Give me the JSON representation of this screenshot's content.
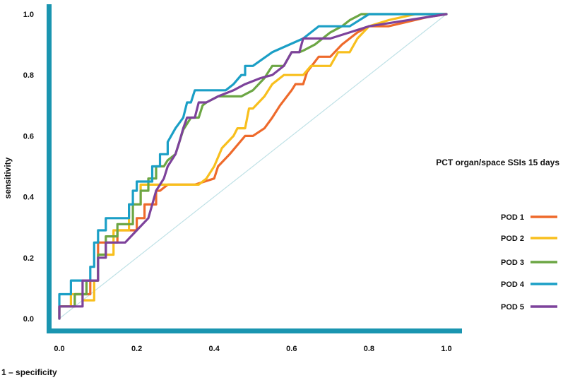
{
  "chart_data": {
    "type": "line",
    "title": "",
    "xlabel": "1 – specificity",
    "ylabel": "sensitivity",
    "xlim": [
      0.0,
      1.0
    ],
    "ylim": [
      0.0,
      1.0
    ],
    "x_ticks": [
      "0.0",
      "0.2",
      "0.4",
      "0.6",
      "0.8",
      "1.0"
    ],
    "y_ticks": [
      "0.0",
      "0.2",
      "0.4",
      "0.6",
      "0.8",
      "1.0"
    ],
    "grid": false,
    "legend_title": "PCT organ/space SSIs 15 days",
    "legend_position": "right",
    "axis_color": "#1a95b0",
    "reference_line": {
      "color": "#bfe1e6",
      "points": [
        [
          0,
          0
        ],
        [
          1,
          1
        ]
      ]
    },
    "series": [
      {
        "name": "POD 1",
        "color": "#ee6a2b",
        "points": [
          [
            0,
            0
          ],
          [
            0,
            0.04
          ],
          [
            0.04,
            0.04
          ],
          [
            0.04,
            0.08
          ],
          [
            0.08,
            0.08
          ],
          [
            0.08,
            0.125
          ],
          [
            0.1,
            0.125
          ],
          [
            0.1,
            0.25
          ],
          [
            0.15,
            0.25
          ],
          [
            0.15,
            0.29
          ],
          [
            0.2,
            0.29
          ],
          [
            0.2,
            0.33
          ],
          [
            0.22,
            0.33
          ],
          [
            0.22,
            0.375
          ],
          [
            0.25,
            0.375
          ],
          [
            0.25,
            0.42
          ],
          [
            0.26,
            0.42
          ],
          [
            0.28,
            0.44
          ],
          [
            0.35,
            0.44
          ],
          [
            0.4,
            0.46
          ],
          [
            0.41,
            0.5
          ],
          [
            0.44,
            0.54
          ],
          [
            0.48,
            0.6
          ],
          [
            0.5,
            0.6
          ],
          [
            0.53,
            0.625
          ],
          [
            0.55,
            0.66
          ],
          [
            0.57,
            0.7
          ],
          [
            0.6,
            0.75
          ],
          [
            0.61,
            0.77
          ],
          [
            0.63,
            0.77
          ],
          [
            0.64,
            0.81
          ],
          [
            0.67,
            0.86
          ],
          [
            0.7,
            0.86
          ],
          [
            0.73,
            0.9
          ],
          [
            0.77,
            0.94
          ],
          [
            0.8,
            0.96
          ],
          [
            0.85,
            0.96
          ],
          [
            0.95,
            0.99
          ],
          [
            1,
            1
          ]
        ]
      },
      {
        "name": "POD 2",
        "color": "#f8bf1d",
        "points": [
          [
            0,
            0
          ],
          [
            0,
            0.04
          ],
          [
            0.03,
            0.04
          ],
          [
            0.03,
            0.08
          ],
          [
            0.06,
            0.08
          ],
          [
            0.06,
            0.06
          ],
          [
            0.09,
            0.06
          ],
          [
            0.09,
            0.125
          ],
          [
            0.1,
            0.125
          ],
          [
            0.1,
            0.21
          ],
          [
            0.14,
            0.21
          ],
          [
            0.14,
            0.29
          ],
          [
            0.18,
            0.29
          ],
          [
            0.18,
            0.375
          ],
          [
            0.21,
            0.375
          ],
          [
            0.21,
            0.44
          ],
          [
            0.28,
            0.44
          ],
          [
            0.35,
            0.44
          ],
          [
            0.36,
            0.44
          ],
          [
            0.38,
            0.46
          ],
          [
            0.4,
            0.5
          ],
          [
            0.42,
            0.56
          ],
          [
            0.45,
            0.6
          ],
          [
            0.46,
            0.625
          ],
          [
            0.48,
            0.625
          ],
          [
            0.49,
            0.69
          ],
          [
            0.5,
            0.69
          ],
          [
            0.53,
            0.73
          ],
          [
            0.55,
            0.77
          ],
          [
            0.58,
            0.8
          ],
          [
            0.63,
            0.8
          ],
          [
            0.65,
            0.83
          ],
          [
            0.7,
            0.83
          ],
          [
            0.72,
            0.875
          ],
          [
            0.75,
            0.875
          ],
          [
            0.77,
            0.92
          ],
          [
            0.8,
            0.96
          ],
          [
            0.85,
            0.98
          ],
          [
            0.92,
            1
          ],
          [
            1,
            1
          ]
        ]
      },
      {
        "name": "POD 3",
        "color": "#6ca644",
        "points": [
          [
            0,
            0
          ],
          [
            0,
            0.04
          ],
          [
            0.04,
            0.04
          ],
          [
            0.04,
            0.08
          ],
          [
            0.07,
            0.08
          ],
          [
            0.07,
            0.125
          ],
          [
            0.1,
            0.125
          ],
          [
            0.1,
            0.21
          ],
          [
            0.12,
            0.21
          ],
          [
            0.12,
            0.27
          ],
          [
            0.15,
            0.27
          ],
          [
            0.15,
            0.31
          ],
          [
            0.19,
            0.31
          ],
          [
            0.19,
            0.375
          ],
          [
            0.21,
            0.375
          ],
          [
            0.21,
            0.42
          ],
          [
            0.23,
            0.42
          ],
          [
            0.23,
            0.46
          ],
          [
            0.25,
            0.46
          ],
          [
            0.25,
            0.5
          ],
          [
            0.27,
            0.5
          ],
          [
            0.28,
            0.52
          ],
          [
            0.3,
            0.54
          ],
          [
            0.31,
            0.58
          ],
          [
            0.32,
            0.62
          ],
          [
            0.34,
            0.66
          ],
          [
            0.36,
            0.66
          ],
          [
            0.37,
            0.7
          ],
          [
            0.38,
            0.71
          ],
          [
            0.41,
            0.73
          ],
          [
            0.44,
            0.73
          ],
          [
            0.47,
            0.73
          ],
          [
            0.5,
            0.75
          ],
          [
            0.53,
            0.79
          ],
          [
            0.55,
            0.83
          ],
          [
            0.58,
            0.83
          ],
          [
            0.6,
            0.875
          ],
          [
            0.62,
            0.875
          ],
          [
            0.63,
            0.88
          ],
          [
            0.66,
            0.9
          ],
          [
            0.7,
            0.94
          ],
          [
            0.73,
            0.96
          ],
          [
            0.75,
            0.98
          ],
          [
            0.78,
            1
          ],
          [
            1,
            1
          ]
        ]
      },
      {
        "name": "POD 4",
        "color": "#1b9fc6",
        "points": [
          [
            0,
            0
          ],
          [
            0,
            0.08
          ],
          [
            0.03,
            0.08
          ],
          [
            0.03,
            0.125
          ],
          [
            0.08,
            0.125
          ],
          [
            0.08,
            0.17
          ],
          [
            0.09,
            0.17
          ],
          [
            0.09,
            0.25
          ],
          [
            0.1,
            0.25
          ],
          [
            0.1,
            0.29
          ],
          [
            0.12,
            0.29
          ],
          [
            0.12,
            0.33
          ],
          [
            0.18,
            0.33
          ],
          [
            0.18,
            0.375
          ],
          [
            0.19,
            0.375
          ],
          [
            0.19,
            0.42
          ],
          [
            0.2,
            0.42
          ],
          [
            0.2,
            0.45
          ],
          [
            0.24,
            0.45
          ],
          [
            0.24,
            0.5
          ],
          [
            0.26,
            0.5
          ],
          [
            0.26,
            0.54
          ],
          [
            0.28,
            0.54
          ],
          [
            0.28,
            0.58
          ],
          [
            0.3,
            0.625
          ],
          [
            0.32,
            0.66
          ],
          [
            0.33,
            0.71
          ],
          [
            0.34,
            0.71
          ],
          [
            0.35,
            0.75
          ],
          [
            0.43,
            0.75
          ],
          [
            0.45,
            0.77
          ],
          [
            0.47,
            0.8
          ],
          [
            0.48,
            0.8
          ],
          [
            0.48,
            0.83
          ],
          [
            0.5,
            0.83
          ],
          [
            0.55,
            0.875
          ],
          [
            0.63,
            0.92
          ],
          [
            0.67,
            0.96
          ],
          [
            0.75,
            0.96
          ],
          [
            0.8,
            1
          ],
          [
            1,
            1
          ]
        ]
      },
      {
        "name": "POD 5",
        "color": "#7d429b",
        "points": [
          [
            0,
            0
          ],
          [
            0,
            0.04
          ],
          [
            0.06,
            0.04
          ],
          [
            0.06,
            0.125
          ],
          [
            0.1,
            0.125
          ],
          [
            0.1,
            0.2
          ],
          [
            0.12,
            0.2
          ],
          [
            0.12,
            0.25
          ],
          [
            0.17,
            0.25
          ],
          [
            0.2,
            0.29
          ],
          [
            0.23,
            0.33
          ],
          [
            0.24,
            0.375
          ],
          [
            0.25,
            0.42
          ],
          [
            0.27,
            0.46
          ],
          [
            0.28,
            0.5
          ],
          [
            0.3,
            0.54
          ],
          [
            0.31,
            0.58
          ],
          [
            0.32,
            0.625
          ],
          [
            0.33,
            0.66
          ],
          [
            0.35,
            0.66
          ],
          [
            0.36,
            0.71
          ],
          [
            0.38,
            0.71
          ],
          [
            0.41,
            0.73
          ],
          [
            0.45,
            0.75
          ],
          [
            0.48,
            0.77
          ],
          [
            0.52,
            0.79
          ],
          [
            0.55,
            0.8
          ],
          [
            0.58,
            0.83
          ],
          [
            0.6,
            0.875
          ],
          [
            0.62,
            0.875
          ],
          [
            0.63,
            0.92
          ],
          [
            0.7,
            0.92
          ],
          [
            0.75,
            0.94
          ],
          [
            0.8,
            0.96
          ],
          [
            0.9,
            0.98
          ],
          [
            1,
            1
          ]
        ]
      }
    ]
  }
}
